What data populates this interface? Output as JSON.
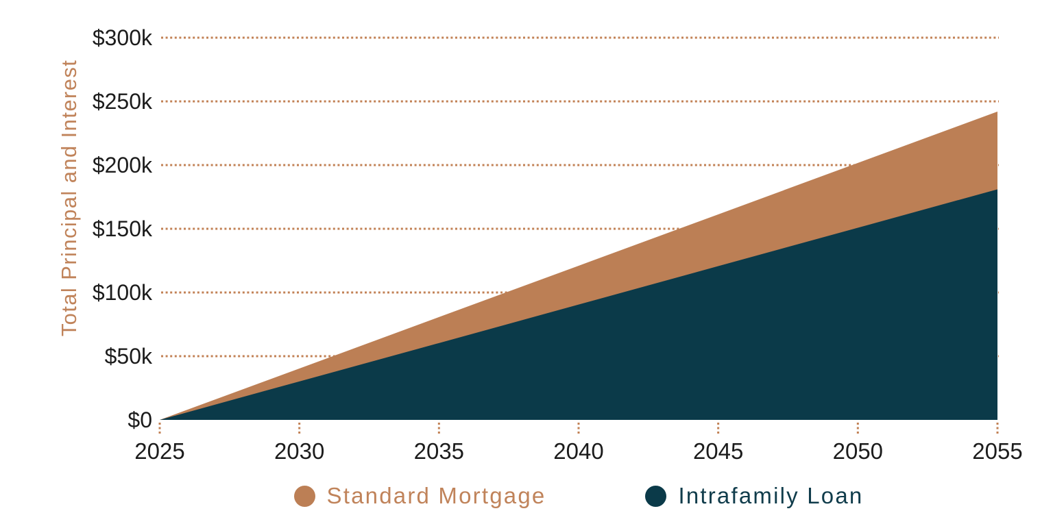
{
  "chart_data": {
    "type": "area",
    "ylabel": "Total Principal and Interest",
    "x": [
      2025,
      2030,
      2035,
      2040,
      2045,
      2050,
      2055
    ],
    "x_tick_labels": [
      "2025",
      "2030",
      "2035",
      "2040",
      "2045",
      "2050",
      "2055"
    ],
    "y_tick_labels": [
      "$0",
      "$50k",
      "$100k",
      "$150k",
      "$200k",
      "$250k",
      "$300k"
    ],
    "y_ticks_k": [
      0,
      50,
      100,
      150,
      200,
      250,
      300
    ],
    "ylim_k": [
      0,
      300
    ],
    "units": "USD thousands",
    "grid": "horizontal dotted tan lines, drawn behind areas; short dotted vertical tick marks below x-axis",
    "legend_position": "bottom center",
    "series": [
      {
        "name": "Standard Mortgage",
        "color": "#bc7f55",
        "label_color": "#c0835a",
        "values_k": [
          0,
          40.3,
          80.7,
          121.0,
          161.3,
          201.7,
          242.0
        ]
      },
      {
        "name": "Intrafamily Loan",
        "color": "#0b3a49",
        "label_color": "#103c4b",
        "values_k": [
          0,
          30.2,
          60.3,
          90.5,
          120.7,
          150.8,
          181.0
        ]
      }
    ]
  },
  "colors": {
    "background": "#ffffff",
    "gridline": "#c28155",
    "tick_mark": "#c28155",
    "axis_title_tan": "#c0835a",
    "axis_label_dark": "#1c1c1c"
  }
}
